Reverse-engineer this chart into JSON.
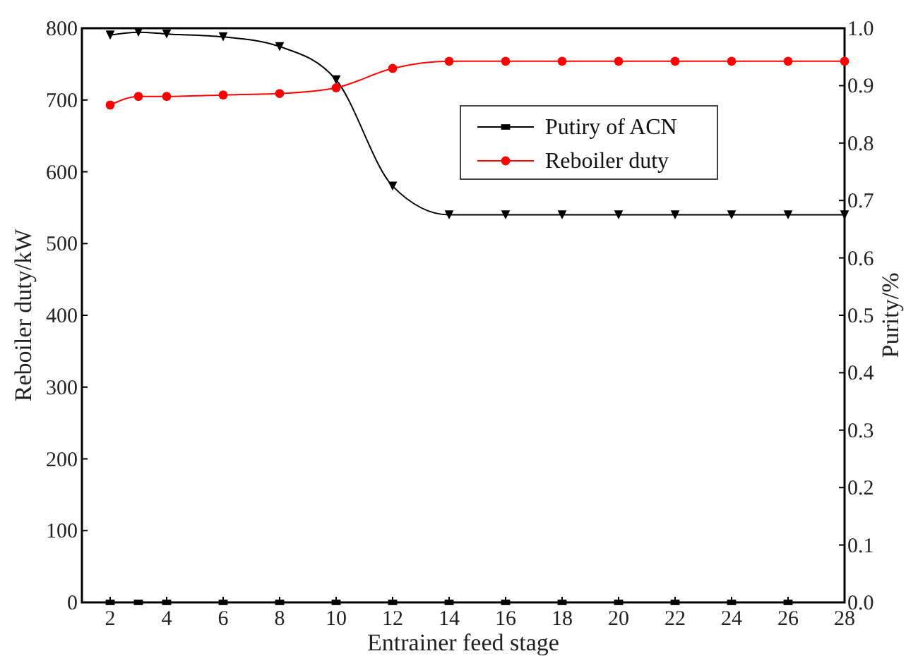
{
  "chart_data": {
    "type": "line",
    "xlabel": "Entrainer feed stage",
    "ylabel": "Reboiler duty/kW",
    "y2label": "Purity/%",
    "xlim": [
      1,
      28
    ],
    "xticks": [
      2,
      4,
      6,
      8,
      10,
      12,
      14,
      16,
      18,
      20,
      22,
      24,
      26,
      28
    ],
    "ylim": [
      0,
      800
    ],
    "yticks": [
      0,
      100,
      200,
      300,
      400,
      500,
      600,
      700,
      800
    ],
    "y2lim": [
      0,
      1.0
    ],
    "y2ticks": [
      {
        "value": 0,
        "label": "0.0"
      },
      0.1,
      0.2,
      0.3,
      0.4,
      0.5,
      0.6,
      0.7,
      0.8,
      0.9,
      {
        "value": 1,
        "label": "1.0"
      }
    ],
    "grid": false,
    "legend": "top right",
    "series": [
      {
        "name": "Putiry of ACN",
        "color": "#000000",
        "axis": "y2",
        "marker": "triangle",
        "x": [
          2,
          3,
          4,
          6,
          8,
          10,
          12,
          14,
          16,
          18,
          20,
          22,
          24,
          26,
          28
        ],
        "values": [
          0.988,
          0.993,
          0.99,
          0.985,
          0.968,
          0.91,
          0.725,
          0.675,
          0.675,
          0.675,
          0.675,
          0.675,
          0.675,
          0.675,
          0.675
        ]
      },
      {
        "name": "Reboiler duty",
        "color": "#ff0000",
        "axis": "y",
        "marker": "circle",
        "x": [
          2,
          3,
          4,
          6,
          8,
          10,
          12,
          14,
          16,
          18,
          20,
          22,
          24,
          26,
          28
        ],
        "values": [
          693,
          705,
          705,
          707,
          709,
          717,
          744,
          754,
          754,
          754,
          754,
          754,
          754,
          754,
          754
        ]
      },
      {
        "type": "scatter",
        "color": "#000000",
        "axis": "y",
        "marker": "square",
        "x": [
          2,
          3,
          4,
          6,
          8,
          10,
          12,
          14,
          16,
          18,
          20,
          22,
          24,
          26
        ],
        "values": [
          0,
          0,
          0,
          0,
          0,
          0,
          0,
          0,
          0,
          0,
          0,
          0,
          0,
          0
        ]
      }
    ]
  }
}
